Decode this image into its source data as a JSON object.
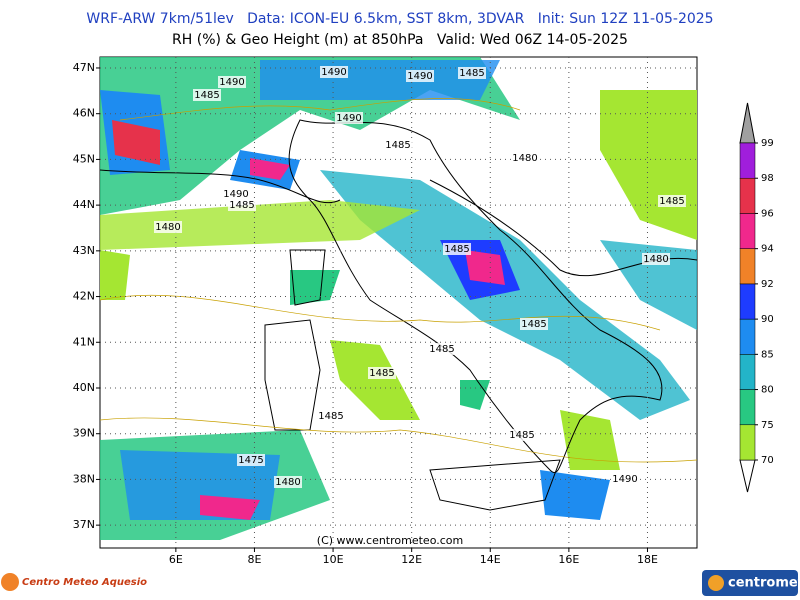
{
  "map": {
    "title": "WRF-ARW 7km/51lev   Data: ICON-EU 6.5km, SST 8km, 3DVAR   Init: Sun 12Z 11-05-2025",
    "subtitle": "RH (%) & Geo Height (m) at 850hPa   Valid: Wed 06Z 14-05-2025",
    "xlim": [
      4.07,
      19.26
    ],
    "ylim": [
      36.5,
      47.24
    ],
    "xticks": [
      {
        "value": 6,
        "label": "6E"
      },
      {
        "value": 8,
        "label": "8E"
      },
      {
        "value": 10,
        "label": "10E"
      },
      {
        "value": 12,
        "label": "12E"
      },
      {
        "value": 14,
        "label": "14E"
      },
      {
        "value": 16,
        "label": "16E"
      },
      {
        "value": 18,
        "label": "18E"
      }
    ],
    "yticks": [
      {
        "value": 47,
        "label": "47N"
      },
      {
        "value": 46,
        "label": "46N"
      },
      {
        "value": 45,
        "label": "45N"
      },
      {
        "value": 44,
        "label": "44N"
      },
      {
        "value": 43,
        "label": "43N"
      },
      {
        "value": 42,
        "label": "42N"
      },
      {
        "value": 41,
        "label": "41N"
      },
      {
        "value": 40,
        "label": "40N"
      },
      {
        "value": 39,
        "label": "39N"
      },
      {
        "value": 38,
        "label": "38N"
      },
      {
        "value": 37,
        "label": "37N"
      }
    ],
    "colorbar": {
      "levels": [
        70,
        75,
        80,
        85,
        90,
        92,
        94,
        96,
        98,
        99
      ],
      "colors": [
        "#a5e632",
        "#28c882",
        "#23b4c8",
        "#1e8cf0",
        "#1e3cff",
        "#f08228",
        "#f0288c",
        "#e6324b",
        "#a01edc"
      ]
    },
    "contour_labels": [
      1490,
      1485,
      1490,
      1490,
      1485,
      1490,
      1485,
      1480,
      1490,
      1485,
      1480,
      1485,
      1485,
      1480,
      1485,
      1485,
      1485,
      1485,
      1485,
      1475,
      1480,
      1490
    ],
    "copyright": "(C) www.centrometeo.com",
    "logo_left": "Centro Meteo Aquesio",
    "logo_right": "centrometeo"
  }
}
